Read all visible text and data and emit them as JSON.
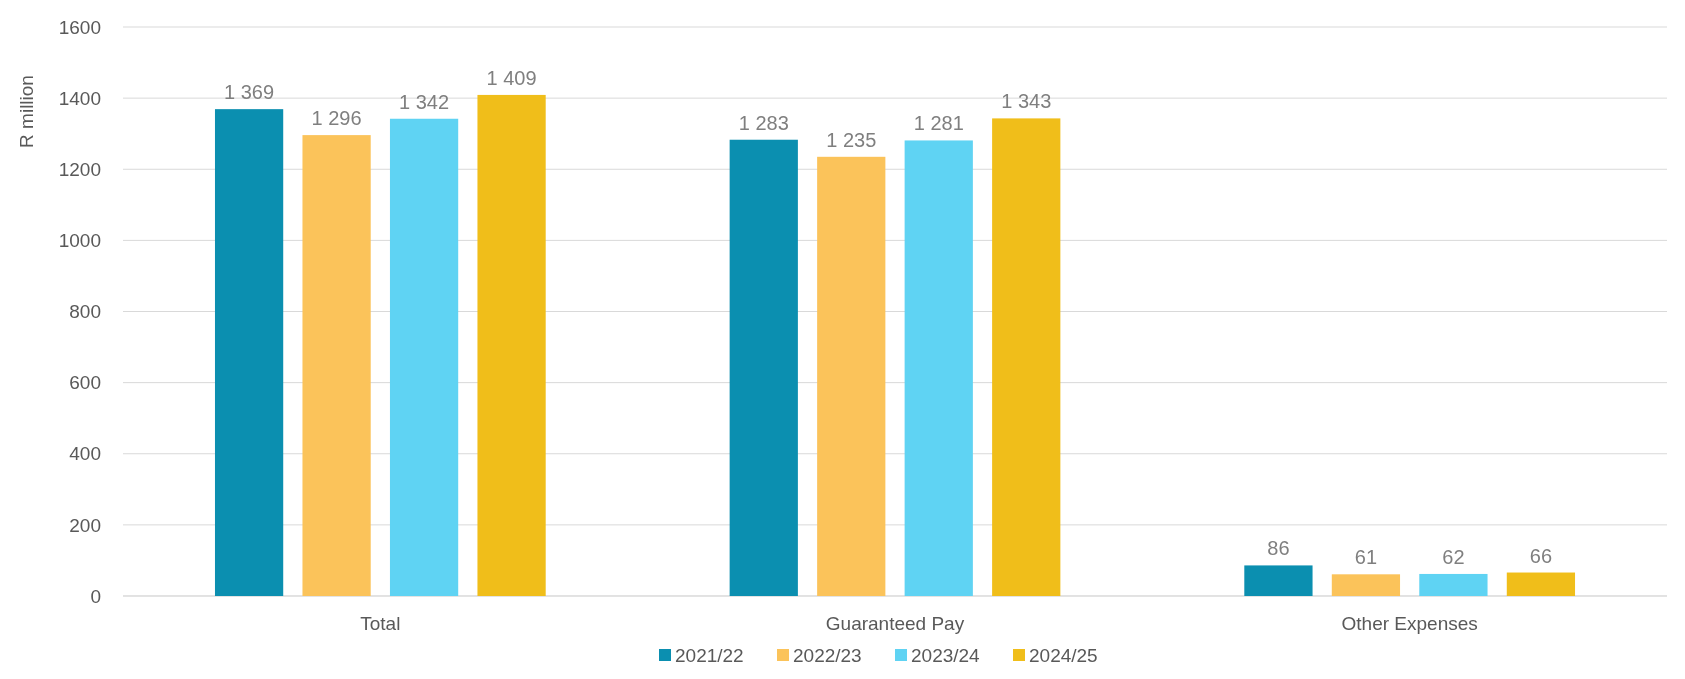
{
  "chart_data": {
    "type": "bar",
    "ylabel": "R million",
    "categories": [
      "Total",
      "Guaranteed Pay",
      "Other Expenses"
    ],
    "series": [
      {
        "name": "2021/22",
        "color": "#0b8fb0",
        "values": [
          1369,
          1283,
          86
        ],
        "value_labels": [
          "1 369",
          "1 283",
          "86"
        ]
      },
      {
        "name": "2022/23",
        "color": "#fbc35a",
        "values": [
          1296,
          1235,
          61
        ],
        "value_labels": [
          "1 296",
          "1 235",
          "61"
        ]
      },
      {
        "name": "2023/24",
        "color": "#5fd3f3",
        "values": [
          1342,
          1281,
          62
        ],
        "value_labels": [
          "1 342",
          "1 281",
          "62"
        ]
      },
      {
        "name": "2024/25",
        "color": "#f0be1a",
        "values": [
          1409,
          1343,
          66
        ],
        "value_labels": [
          "1 409",
          "1 343",
          "66"
        ]
      }
    ],
    "ylim": [
      0,
      1600
    ],
    "yticks": [
      0,
      200,
      400,
      600,
      800,
      1000,
      1200,
      1400,
      1600
    ],
    "grid": "y",
    "legend": "bottom"
  }
}
